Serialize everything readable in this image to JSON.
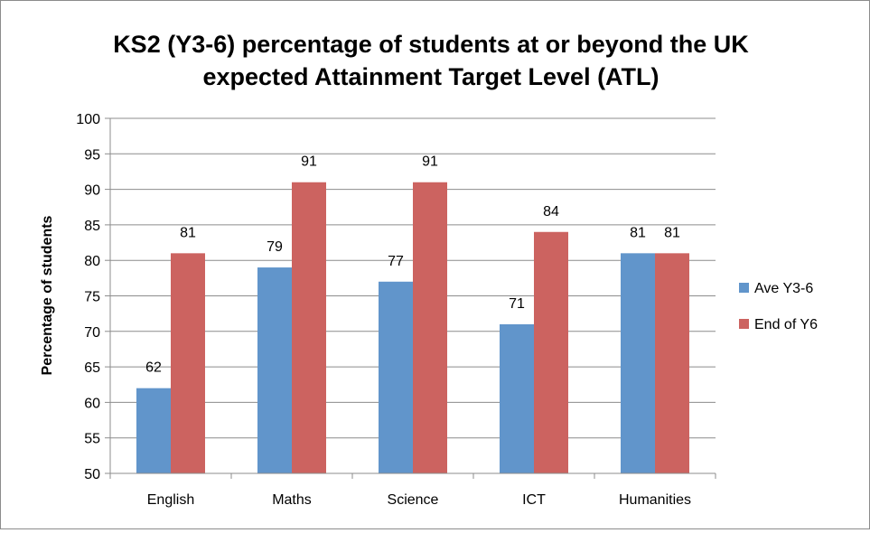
{
  "chart_data": {
    "type": "bar",
    "title_line1": "KS2 (Y3-6) percentage of students at or beyond the UK",
    "title_line2": "expected Attainment Target Level (ATL)",
    "ylabel": "Percentage of students",
    "xlabel": "",
    "categories": [
      "English",
      "Maths",
      "Science",
      "ICT",
      "Humanities"
    ],
    "series": [
      {
        "name": "Ave Y3-6",
        "values": [
          62,
          79,
          77,
          71,
          81
        ],
        "color": "#6195CB"
      },
      {
        "name": "End of Y6",
        "values": [
          81,
          91,
          91,
          84,
          81
        ],
        "color": "#CC6360"
      }
    ],
    "ylim": [
      50,
      100
    ],
    "yticks": [
      50,
      55,
      60,
      65,
      70,
      75,
      80,
      85,
      90,
      95,
      100
    ],
    "grid": true,
    "data_labels": true,
    "legend_position": "right"
  }
}
